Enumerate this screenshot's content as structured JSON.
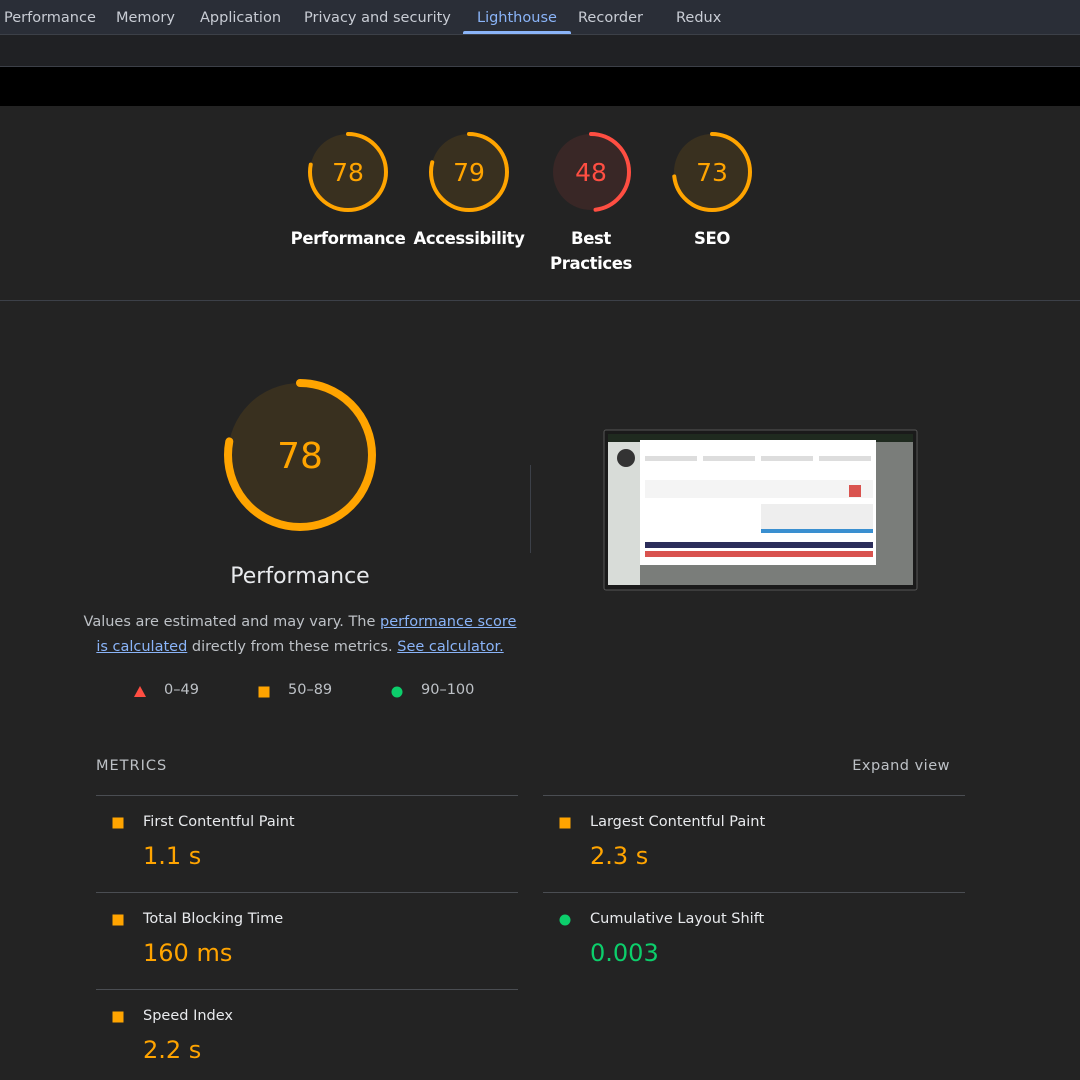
{
  "tabs": [
    {
      "label": "Performance"
    },
    {
      "label": "Memory"
    },
    {
      "label": "Application"
    },
    {
      "label": "Privacy and security"
    },
    {
      "label": "Lighthouse",
      "active": true
    },
    {
      "label": "Recorder"
    },
    {
      "label": "Redux"
    }
  ],
  "gauges": [
    {
      "score": 78,
      "label": "Performance",
      "color": "#ffa400"
    },
    {
      "score": 79,
      "label": "Accessibility",
      "color": "#ffa400"
    },
    {
      "score": 48,
      "label": "Best Practices",
      "color": "#ff4e42"
    },
    {
      "score": 73,
      "label": "SEO",
      "color": "#ffa400"
    }
  ],
  "main": {
    "score": 78,
    "title": "Performance",
    "color": "#ffa400"
  },
  "description": [
    {
      "text": "Values are estimated and may vary. The "
    },
    {
      "text": "performance score is calculated",
      "link": true
    },
    {
      "text": " directly from these metrics. "
    },
    {
      "text": "See calculator.",
      "link": true
    }
  ],
  "legend": [
    {
      "label": "0–49",
      "shape": "triangle",
      "color": "#ff4e42"
    },
    {
      "label": "50–89",
      "shape": "square",
      "color": "#ffa400"
    },
    {
      "label": "90–100",
      "shape": "circle",
      "color": "#0cce6b"
    }
  ],
  "metrics": {
    "title": "METRICS",
    "expand": "Expand view",
    "items": [
      {
        "name": "First Contentful Paint",
        "value": "1.1 s",
        "shape": "square",
        "color": "#ffa400"
      },
      {
        "name": "Largest Contentful Paint",
        "value": "2.3 s",
        "shape": "square",
        "color": "#ffa400"
      },
      {
        "name": "Total Blocking Time",
        "value": "160 ms",
        "shape": "square",
        "color": "#ffa400"
      },
      {
        "name": "Cumulative Layout Shift",
        "value": "0.003",
        "shape": "circle",
        "color": "#0cce6b"
      },
      {
        "name": "Speed Index",
        "value": "2.2 s",
        "shape": "square",
        "color": "#ffa400"
      }
    ]
  }
}
